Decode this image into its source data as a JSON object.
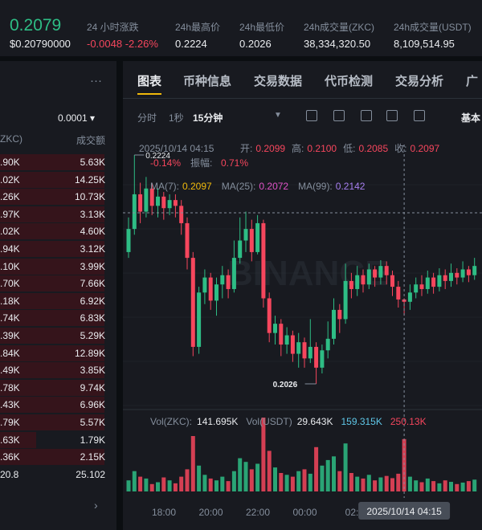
{
  "ticker": {
    "price": "0.2079",
    "price_usd": "$0.20790000",
    "stats": [
      {
        "label": "24 小时涨跌",
        "value": "-0.0048 -2.26%"
      },
      {
        "label": "24h最高价",
        "value": "0.2224"
      },
      {
        "label": "24h最低价",
        "value": "0.2026"
      },
      {
        "label": "24h成交量(ZKC)",
        "value": "38,334,320.50"
      },
      {
        "label": "24h成交量(USDT)",
        "value": "8,109,514.95"
      }
    ]
  },
  "order_book": {
    "tick": "0.0001",
    "headers": [
      "ZKC)",
      "成交额"
    ],
    "rows": [
      [
        ".90K",
        "5.63K"
      ],
      [
        ".02K",
        "14.25K"
      ],
      [
        ".26K",
        "10.73K"
      ],
      [
        ".97K",
        "3.13K"
      ],
      [
        ".02K",
        "4.60K"
      ],
      [
        ".94K",
        "3.12K"
      ],
      [
        ".10K",
        "3.99K"
      ],
      [
        ".70K",
        "7.66K"
      ],
      [
        ".18K",
        "6.92K"
      ],
      [
        ".74K",
        "6.83K"
      ],
      [
        ".39K",
        "5.29K"
      ],
      [
        ".84K",
        "12.89K"
      ],
      [
        ".49K",
        "3.85K"
      ],
      [
        ".78K",
        "9.74K"
      ],
      [
        ".43K",
        "6.96K"
      ],
      [
        ".79K",
        "5.57K"
      ],
      [
        ".63K",
        "1.79K"
      ],
      [
        ".36K",
        "2.15K"
      ],
      [
        "20.8",
        "25.102"
      ]
    ]
  },
  "tabs": [
    "图表",
    "币种信息",
    "交易数据",
    "代币检测",
    "交易分析",
    "广"
  ],
  "toolbar": {
    "intervals": [
      "分时",
      "1秒",
      "15分钟"
    ],
    "view": "基本"
  },
  "chart": {
    "time": "2025/10/14 04:15",
    "ohlc": [
      {
        "label": "开:",
        "value": "0.2099"
      },
      {
        "label": "高:",
        "value": "0.2100"
      },
      {
        "label": "低:",
        "value": "0.2085"
      },
      {
        "label": "收:",
        "value": "0.2097"
      }
    ],
    "change": "-0.14%",
    "amplitude_label": "振幅:",
    "amplitude": "0.71%",
    "ma": [
      {
        "label": "MA(7):",
        "value": "0.2097",
        "color": "#f0b90b"
      },
      {
        "label": "MA(25):",
        "value": "0.2072",
        "color": "#e052c7"
      },
      {
        "label": "MA(99):",
        "value": "0.2142",
        "color": "#a77ff0"
      }
    ],
    "high_label": "0.2224",
    "low_label": "0.2026",
    "volume_legend": [
      {
        "label": "Vol(ZKC):",
        "value": "141.695K"
      },
      {
        "label": "Vol(USDT)",
        "value": "29.643K"
      },
      {
        "value": "159.315K",
        "color": "#5fc8e8"
      },
      {
        "value": "250.13K",
        "color": "#f6465d"
      }
    ],
    "time_labels": [
      "18:00",
      "20:00",
      "22:00",
      "00:00",
      "02:"
    ],
    "crosshair_index": 47,
    "candles": [
      [
        0.214,
        0.217,
        0.2135,
        0.216
      ],
      [
        0.216,
        0.2224,
        0.2155,
        0.219
      ],
      [
        0.219,
        0.22,
        0.2165,
        0.2175
      ],
      [
        0.2175,
        0.2205,
        0.217,
        0.2195
      ],
      [
        0.2195,
        0.22,
        0.2172,
        0.218
      ],
      [
        0.218,
        0.2195,
        0.217,
        0.2188
      ],
      [
        0.2188,
        0.2192,
        0.2168,
        0.2178
      ],
      [
        0.2178,
        0.219,
        0.2172,
        0.2185
      ],
      [
        0.2185,
        0.219,
        0.217,
        0.218
      ],
      [
        0.218,
        0.2185,
        0.2155,
        0.2165
      ],
      [
        0.2165,
        0.217,
        0.2125,
        0.2135
      ],
      [
        0.2135,
        0.214,
        0.205,
        0.2058
      ],
      [
        0.2058,
        0.211,
        0.2052,
        0.2105
      ],
      [
        0.2105,
        0.2125,
        0.2095,
        0.2118
      ],
      [
        0.2118,
        0.2122,
        0.209,
        0.2098
      ],
      [
        0.2098,
        0.2118,
        0.2085,
        0.2112
      ],
      [
        0.2112,
        0.2128,
        0.21,
        0.212
      ],
      [
        0.212,
        0.2125,
        0.21,
        0.2108
      ],
      [
        0.2108,
        0.215,
        0.2105,
        0.2135
      ],
      [
        0.2135,
        0.217,
        0.213,
        0.215
      ],
      [
        0.215,
        0.2175,
        0.214,
        0.216
      ],
      [
        0.216,
        0.2168,
        0.2132,
        0.214
      ],
      [
        0.214,
        0.2172,
        0.2138,
        0.2165
      ],
      [
        0.2165,
        0.2168,
        0.2092,
        0.21
      ],
      [
        0.21,
        0.2105,
        0.2062,
        0.207
      ],
      [
        0.207,
        0.2085,
        0.206,
        0.2078
      ],
      [
        0.2078,
        0.2082,
        0.205,
        0.206
      ],
      [
        0.206,
        0.2075,
        0.2052,
        0.2068
      ],
      [
        0.2068,
        0.2072,
        0.2045,
        0.2052
      ],
      [
        0.2052,
        0.207,
        0.204,
        0.2062
      ],
      [
        0.2062,
        0.2066,
        0.204,
        0.2048
      ],
      [
        0.2048,
        0.2082,
        0.2044,
        0.2058
      ],
      [
        0.2058,
        0.2062,
        0.2026,
        0.204
      ],
      [
        0.204,
        0.206,
        0.2035,
        0.2055
      ],
      [
        0.2055,
        0.208,
        0.2048,
        0.2065
      ],
      [
        0.2065,
        0.21,
        0.206,
        0.209
      ],
      [
        0.209,
        0.2095,
        0.207,
        0.2082
      ],
      [
        0.2082,
        0.213,
        0.2078,
        0.2115
      ],
      [
        0.2115,
        0.2122,
        0.21,
        0.2108
      ],
      [
        0.2108,
        0.2128,
        0.2102,
        0.212
      ],
      [
        0.212,
        0.2125,
        0.2105,
        0.2112
      ],
      [
        0.2112,
        0.213,
        0.2108,
        0.2125
      ],
      [
        0.2125,
        0.2128,
        0.211,
        0.2118
      ],
      [
        0.2118,
        0.2133,
        0.2112,
        0.2128
      ],
      [
        0.2128,
        0.2132,
        0.2112,
        0.212
      ],
      [
        0.212,
        0.2124,
        0.2102,
        0.211
      ],
      [
        0.211,
        0.2115,
        0.2092,
        0.2099
      ],
      [
        0.2099,
        0.21,
        0.2085,
        0.2097
      ],
      [
        0.2097,
        0.2112,
        0.209,
        0.2105
      ],
      [
        0.2105,
        0.2118,
        0.21,
        0.2112
      ],
      [
        0.2112,
        0.212,
        0.2102,
        0.2108
      ],
      [
        0.2108,
        0.2124,
        0.2104,
        0.2118
      ],
      [
        0.2118,
        0.2122,
        0.2104,
        0.211
      ],
      [
        0.211,
        0.2126,
        0.2106,
        0.212
      ],
      [
        0.212,
        0.2125,
        0.2108,
        0.2115
      ],
      [
        0.2115,
        0.213,
        0.211,
        0.2122
      ],
      [
        0.2122,
        0.2126,
        0.2112,
        0.2118
      ],
      [
        0.2118,
        0.2132,
        0.2114,
        0.2125
      ],
      [
        0.2125,
        0.2128,
        0.2114,
        0.212
      ],
      [
        0.212,
        0.2135,
        0.2116,
        0.2128
      ]
    ],
    "volumes": [
      30,
      55,
      40,
      35,
      20,
      25,
      38,
      30,
      22,
      40,
      60,
      150,
      70,
      45,
      35,
      30,
      40,
      28,
      55,
      90,
      80,
      60,
      75,
      200,
      110,
      65,
      50,
      45,
      40,
      55,
      60,
      48,
      120,
      70,
      85,
      95,
      55,
      130,
      50,
      40,
      35,
      45,
      30,
      38,
      42,
      36,
      48,
      141.695,
      40,
      30,
      25,
      35,
      28,
      22,
      30,
      26,
      20,
      24,
      28,
      32
    ]
  }
}
